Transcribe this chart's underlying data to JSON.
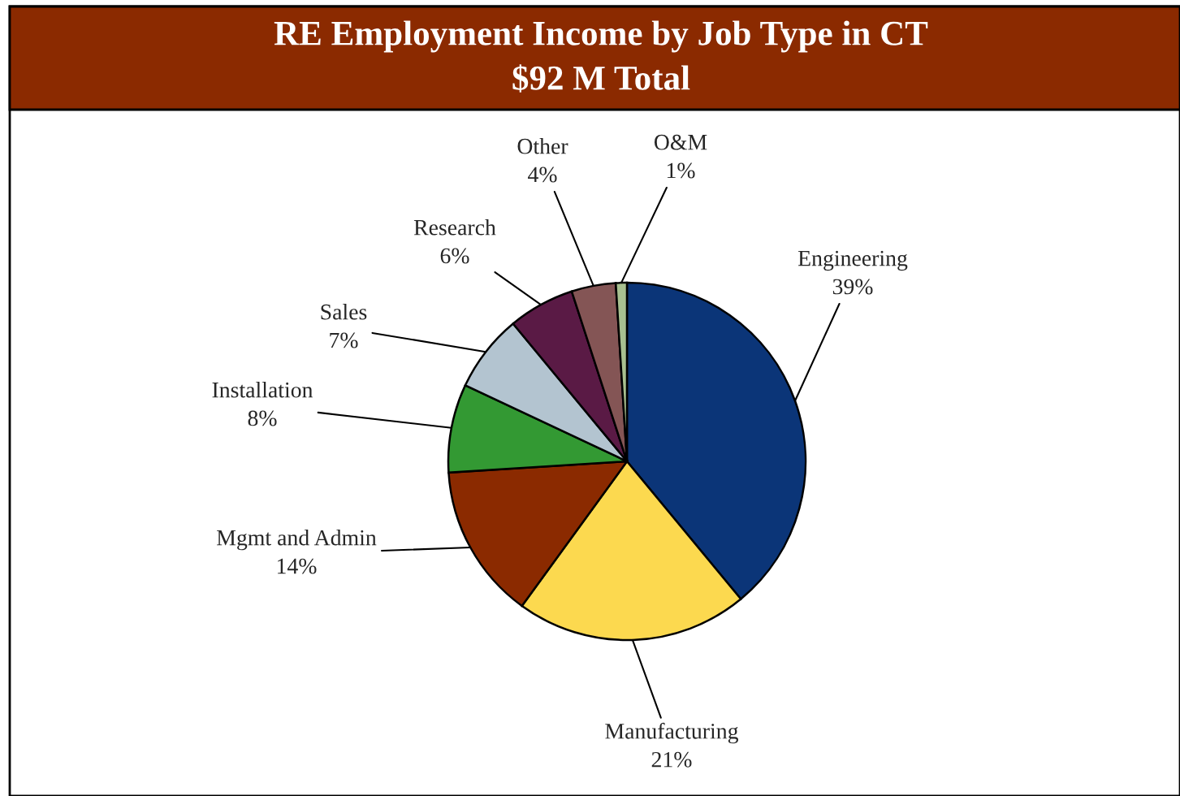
{
  "chart_data": {
    "type": "pie",
    "title": "RE Employment Income by Job Type in CT",
    "subtitle": "$92 M Total",
    "categories": [
      "Engineering",
      "Manufacturing",
      "Mgmt and Admin",
      "Installation",
      "Sales",
      "Research",
      "Other",
      "O&M"
    ],
    "values": [
      39,
      21,
      14,
      8,
      7,
      6,
      4,
      1
    ],
    "value_labels": [
      "39%",
      "21%",
      "14%",
      "8%",
      "7%",
      "6%",
      "4%",
      "1%"
    ],
    "colors": [
      "#0b3578",
      "#fcd94f",
      "#8b2a00",
      "#339933",
      "#b3c4d0",
      "#5a1a45",
      "#845555",
      "#a8c090"
    ]
  }
}
